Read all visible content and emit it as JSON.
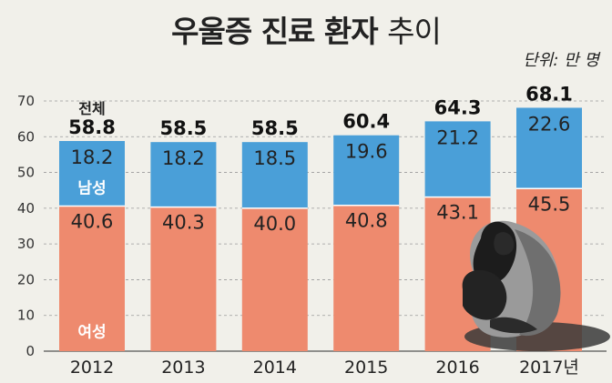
{
  "title_bold": "우울증 진료 환자",
  "title_light": "추이",
  "unit": "단위: 만 명",
  "colors": {
    "male": "#4a9fd8",
    "female": "#ee8a6e",
    "bg": "#f1f0ea"
  },
  "chart_data": {
    "type": "bar",
    "stacked": true,
    "categories": [
      "2012",
      "2013",
      "2014",
      "2015",
      "2016",
      "2017년"
    ],
    "series": [
      {
        "name": "여성",
        "values": [
          40.6,
          40.3,
          40.0,
          40.8,
          43.1,
          45.5
        ]
      },
      {
        "name": "남성",
        "values": [
          18.2,
          18.2,
          18.5,
          19.6,
          21.2,
          22.6
        ]
      }
    ],
    "totals": [
      58.8,
      58.5,
      58.5,
      60.4,
      64.3,
      68.1
    ],
    "total_label": "전체",
    "yticks": [
      0,
      10,
      20,
      30,
      40,
      50,
      60,
      70
    ],
    "ylim": [
      0,
      70
    ],
    "grid": true
  }
}
